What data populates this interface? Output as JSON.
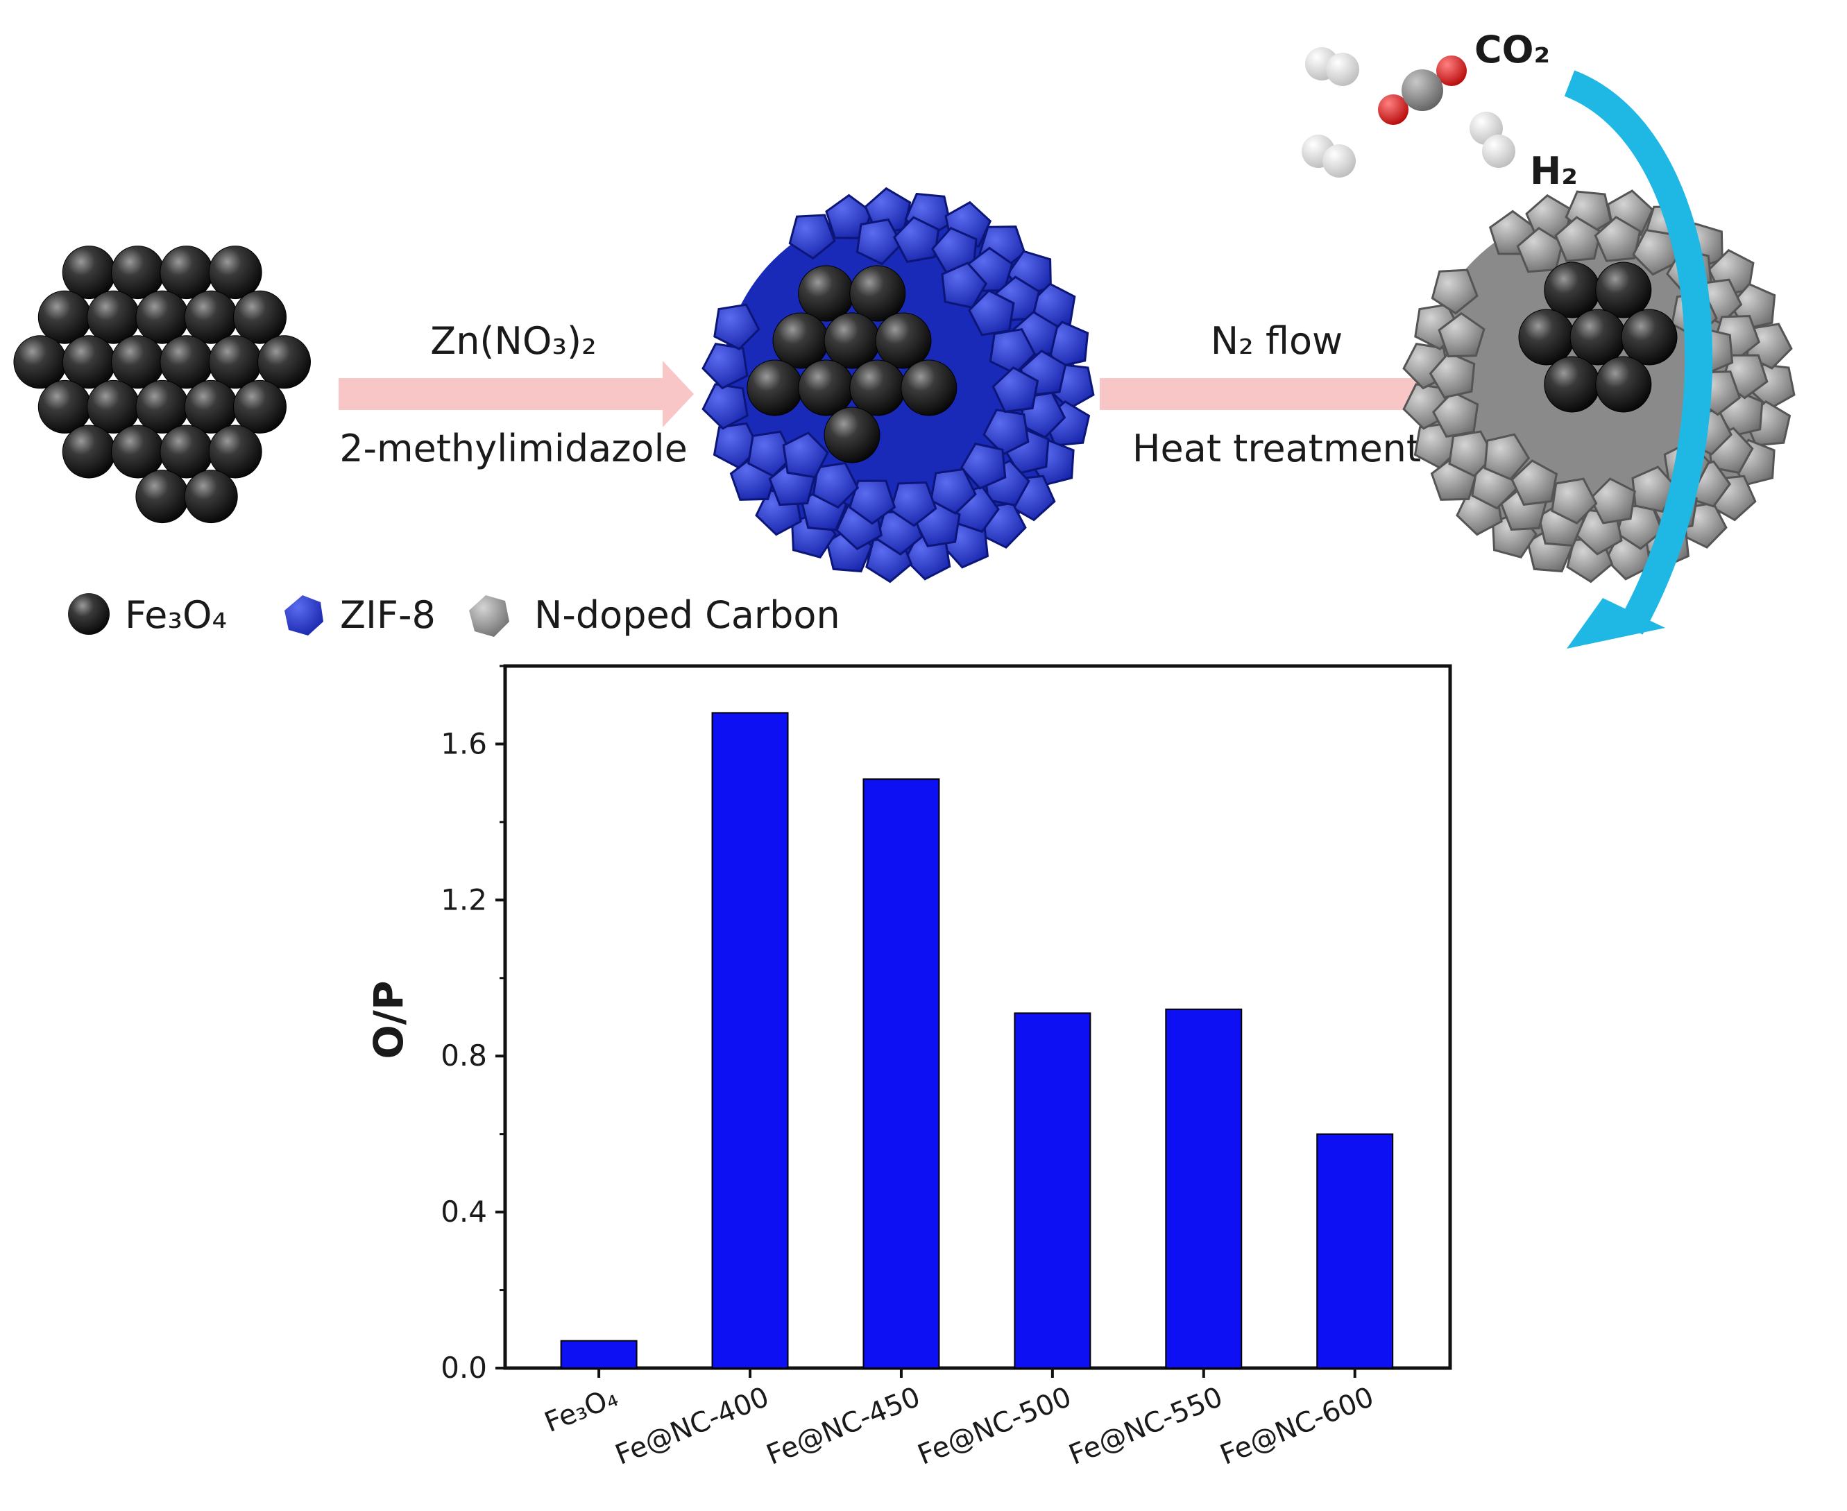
{
  "scheme": {
    "step1": {
      "reagent_top": "Zn(NO₃)₂",
      "reagent_bottom": "2-methylimidazole"
    },
    "step2": {
      "condition_top": "N₂ flow",
      "condition_bottom": "Heat treatment"
    },
    "gases": {
      "co2": "CO₂",
      "h2": "H₂"
    },
    "legend": [
      {
        "label": "Fe₃O₄",
        "icon": "black-sphere-icon"
      },
      {
        "label": "ZIF-8",
        "icon": "blue-polyhedron-icon"
      },
      {
        "label": "N-doped Carbon",
        "icon": "gray-polyhedron-icon"
      }
    ],
    "colors": {
      "fe3o4": "#2b2b2b",
      "zif8": "#2536c8",
      "carbon": "#9a9a9a",
      "arrow": "#f8c6c6",
      "flow_arrow": "#1fb7e3",
      "oxygen": "#e02020",
      "hydrogen": "#f0f0f0"
    }
  },
  "chart_data": {
    "type": "bar",
    "categories": [
      "Fe₃O₄",
      "Fe@NC-400",
      "Fe@NC-450",
      "Fe@NC-500",
      "Fe@NC-550",
      "Fe@NC-600"
    ],
    "values": [
      0.07,
      1.68,
      1.51,
      0.91,
      0.92,
      0.6
    ],
    "ylabel": "O/P",
    "xlabel": "",
    "ylim": [
      0,
      1.8
    ],
    "yticks": [
      "0.0",
      "0.4",
      "0.8",
      "1.2",
      "1.6"
    ],
    "bar_color": "#0c10f2",
    "grid": false
  }
}
